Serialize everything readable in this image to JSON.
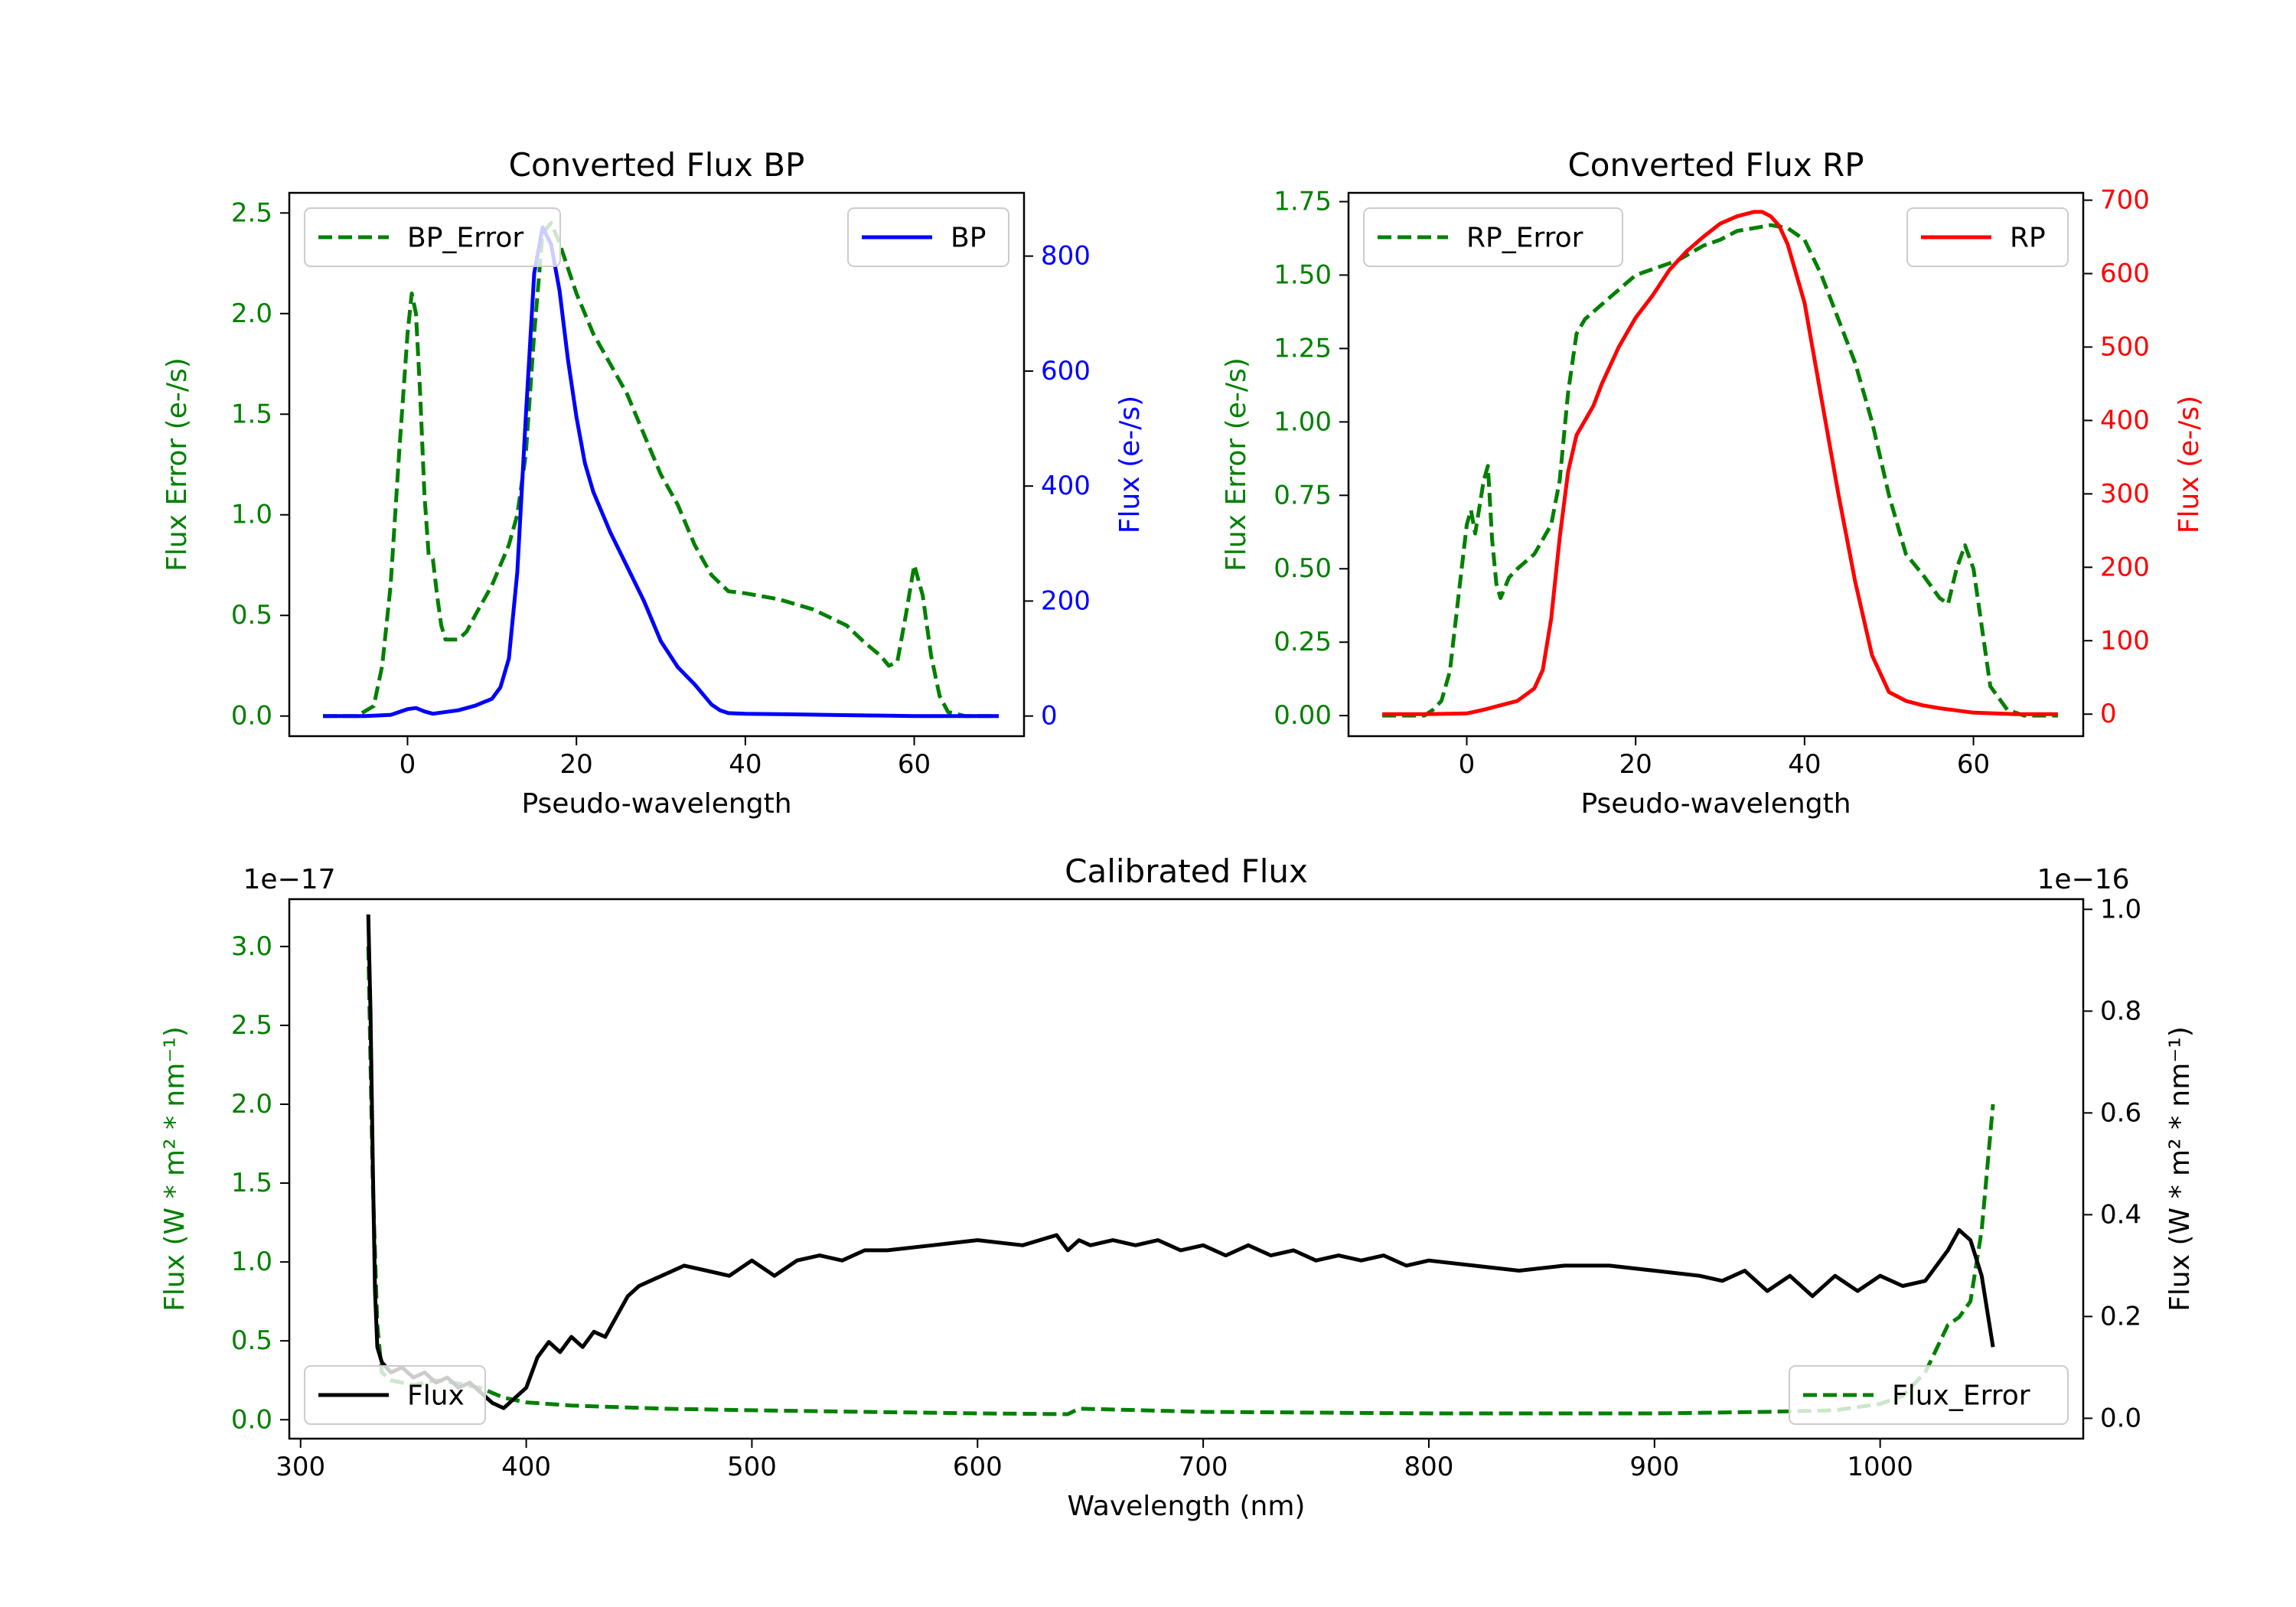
{
  "colors": {
    "error_green": "#008000",
    "bp_blue": "#0000ff",
    "rp_red": "#ff0000",
    "flux_black": "#000000",
    "axis": "#000000"
  },
  "chart_data": [
    {
      "id": "bp",
      "type": "line",
      "title": "Converted Flux BP",
      "xlabel": "Pseudo-wavelength",
      "ylabel_left": "Flux Error (e-/s)",
      "ylabel_right": "Flux (e-/s)",
      "xlim": [
        -14,
        73
      ],
      "ylim_left": [
        -0.1,
        2.6
      ],
      "ylim_right": [
        -35,
        910
      ],
      "xticks": [
        0,
        20,
        40,
        60
      ],
      "yticks_left": [
        "0.0",
        "0.5",
        "1.0",
        "1.5",
        "2.0",
        "2.5"
      ],
      "yticks_right": [
        "0",
        "200",
        "400",
        "600",
        "800"
      ],
      "legend_left": "BP_Error",
      "legend_right": "BP",
      "series": [
        {
          "name": "BP_Error",
          "axis": "left",
          "style": "dashed",
          "color": "#008000",
          "x": [
            -10,
            -6,
            -4,
            -3,
            -2,
            -1,
            0,
            0.5,
            1,
            1.5,
            2,
            2.5,
            3,
            3.5,
            4,
            4.5,
            5,
            6,
            7,
            8,
            10,
            12,
            13,
            14,
            15,
            16,
            17,
            18,
            20,
            22,
            24,
            26,
            28,
            30,
            32,
            34,
            36,
            38,
            40,
            44,
            48,
            52,
            54,
            56,
            57,
            58,
            59,
            60,
            61,
            62,
            63,
            64,
            66,
            70
          ],
          "y": [
            0,
            0,
            0.05,
            0.25,
            0.65,
            1.3,
            1.9,
            2.1,
            2.0,
            1.6,
            1.1,
            0.8,
            0.78,
            0.6,
            0.45,
            0.38,
            0.38,
            0.38,
            0.42,
            0.5,
            0.65,
            0.85,
            1.0,
            1.3,
            1.9,
            2.4,
            2.45,
            2.35,
            2.1,
            1.9,
            1.75,
            1.6,
            1.4,
            1.2,
            1.05,
            0.85,
            0.7,
            0.62,
            0.61,
            0.58,
            0.53,
            0.45,
            0.37,
            0.3,
            0.25,
            0.27,
            0.5,
            0.75,
            0.6,
            0.3,
            0.1,
            0.02,
            0,
            0
          ]
        },
        {
          "name": "BP",
          "axis": "right",
          "style": "solid",
          "color": "#0000ff",
          "x": [
            -10,
            -5,
            -2,
            0,
            1,
            2,
            3,
            4,
            6,
            8,
            10,
            11,
            12,
            13,
            14,
            15,
            16,
            17,
            18,
            19,
            20,
            21,
            22,
            24,
            26,
            28,
            30,
            32,
            34,
            36,
            37,
            38,
            40,
            45,
            50,
            55,
            60,
            65,
            70
          ],
          "y": [
            0,
            0,
            2,
            12,
            14,
            8,
            4,
            6,
            10,
            18,
            30,
            50,
            100,
            250,
            520,
            770,
            850,
            820,
            740,
            620,
            520,
            440,
            390,
            320,
            260,
            200,
            130,
            85,
            55,
            20,
            10,
            5,
            4,
            3,
            2,
            1,
            0,
            0,
            0
          ]
        }
      ]
    },
    {
      "id": "rp",
      "type": "line",
      "title": "Converted Flux RP",
      "xlabel": "Pseudo-wavelength",
      "ylabel_left": "Flux Error (e-/s)",
      "ylabel_right": "Flux (e-/s)",
      "xlim": [
        -14,
        73
      ],
      "ylim_left": [
        -0.07,
        1.78
      ],
      "ylim_right": [
        -30,
        710
      ],
      "xticks": [
        0,
        20,
        40,
        60
      ],
      "yticks_left": [
        "0.00",
        "0.25",
        "0.50",
        "0.75",
        "1.00",
        "1.25",
        "1.50",
        "1.75"
      ],
      "yticks_right": [
        "0",
        "100",
        "200",
        "300",
        "400",
        "500",
        "600",
        "700"
      ],
      "legend_left": "RP_Error",
      "legend_right": "RP",
      "series": [
        {
          "name": "RP_Error",
          "axis": "left",
          "style": "dashed",
          "color": "#008000",
          "x": [
            -10,
            -5,
            -4,
            -3,
            -2,
            -1,
            0,
            0.5,
            1,
            2,
            2.5,
            3,
            3.5,
            4,
            5,
            6,
            8,
            10,
            11,
            12,
            13,
            14,
            16,
            18,
            20,
            22,
            25,
            28,
            30,
            32,
            34,
            36,
            38,
            40,
            42,
            44,
            46,
            48,
            50,
            52,
            54,
            56,
            57,
            58,
            59,
            60,
            61,
            62,
            64,
            66,
            70
          ],
          "y": [
            0,
            0,
            0.02,
            0.05,
            0.15,
            0.4,
            0.65,
            0.7,
            0.62,
            0.8,
            0.85,
            0.6,
            0.45,
            0.4,
            0.47,
            0.5,
            0.55,
            0.65,
            0.8,
            1.1,
            1.3,
            1.35,
            1.4,
            1.45,
            1.5,
            1.52,
            1.55,
            1.6,
            1.62,
            1.65,
            1.66,
            1.67,
            1.66,
            1.62,
            1.5,
            1.35,
            1.2,
            1.0,
            0.75,
            0.55,
            0.48,
            0.4,
            0.38,
            0.5,
            0.58,
            0.5,
            0.3,
            0.1,
            0.02,
            0,
            0
          ]
        },
        {
          "name": "RP",
          "axis": "right",
          "style": "solid",
          "color": "#ff0000",
          "x": [
            -10,
            -5,
            0,
            2,
            4,
            6,
            8,
            9,
            10,
            11,
            12,
            13,
            14,
            15,
            16,
            18,
            20,
            22,
            24,
            26,
            28,
            30,
            32,
            34,
            35,
            36,
            37,
            38,
            40,
            42,
            44,
            46,
            48,
            50,
            52,
            54,
            56,
            60,
            65,
            70
          ],
          "y": [
            0,
            0,
            1,
            6,
            12,
            18,
            35,
            60,
            130,
            240,
            330,
            380,
            400,
            420,
            450,
            500,
            540,
            570,
            605,
            630,
            650,
            668,
            678,
            684,
            684,
            678,
            665,
            640,
            560,
            430,
            300,
            180,
            80,
            30,
            18,
            12,
            8,
            2,
            0,
            0
          ]
        }
      ]
    },
    {
      "id": "calibrated",
      "type": "line",
      "title": "Calibrated Flux",
      "xlabel": "Wavelength (nm)",
      "ylabel_left": "Flux (W * m² * nm⁻¹)",
      "ylabel_right": "Flux (W * m² * nm⁻¹)",
      "offset_left": "1e−17",
      "offset_right": "1e−16",
      "xlim": [
        295,
        1090
      ],
      "ylim_left": [
        -0.12,
        3.3
      ],
      "ylim_right": [
        -0.04,
        1.02
      ],
      "xticks": [
        300,
        400,
        500,
        600,
        700,
        800,
        900,
        1000
      ],
      "yticks_left": [
        "0.0",
        "0.5",
        "1.0",
        "1.5",
        "2.0",
        "2.5",
        "3.0"
      ],
      "yticks_right": [
        "0.0",
        "0.2",
        "0.4",
        "0.6",
        "0.8",
        "1.0"
      ],
      "legend_left": "Flux",
      "legend_right": "Flux_Error",
      "series": [
        {
          "name": "Flux_Error",
          "axis": "left",
          "style": "dashed",
          "color": "#008000",
          "x": [
            330,
            332,
            334,
            336,
            340,
            350,
            360,
            370,
            380,
            390,
            400,
            420,
            440,
            460,
            500,
            550,
            600,
            640,
            645,
            700,
            800,
            900,
            950,
            980,
            1000,
            1010,
            1020,
            1025,
            1030,
            1035,
            1040,
            1045,
            1050
          ],
          "y": [
            3.0,
            1.5,
            0.6,
            0.3,
            0.25,
            0.22,
            0.25,
            0.23,
            0.2,
            0.14,
            0.11,
            0.09,
            0.08,
            0.07,
            0.06,
            0.05,
            0.04,
            0.035,
            0.07,
            0.05,
            0.04,
            0.04,
            0.05,
            0.06,
            0.1,
            0.15,
            0.3,
            0.45,
            0.6,
            0.65,
            0.75,
            1.2,
            2.0
          ]
        },
        {
          "name": "Flux",
          "axis": "right",
          "style": "solid",
          "color": "#000000",
          "x": [
            330,
            331,
            332,
            333,
            334,
            336,
            340,
            345,
            350,
            355,
            360,
            365,
            370,
            375,
            380,
            385,
            390,
            395,
            400,
            405,
            410,
            415,
            420,
            425,
            430,
            435,
            440,
            445,
            450,
            455,
            460,
            470,
            480,
            490,
            500,
            510,
            520,
            530,
            540,
            550,
            560,
            580,
            600,
            620,
            635,
            640,
            645,
            650,
            660,
            670,
            680,
            690,
            700,
            710,
            720,
            730,
            740,
            750,
            760,
            770,
            780,
            790,
            800,
            820,
            840,
            860,
            880,
            900,
            920,
            930,
            940,
            950,
            960,
            970,
            980,
            990,
            1000,
            1010,
            1020,
            1030,
            1035,
            1040,
            1045,
            1050
          ],
          "y": [
            0.99,
            0.8,
            0.5,
            0.25,
            0.14,
            0.11,
            0.09,
            0.1,
            0.08,
            0.09,
            0.07,
            0.08,
            0.06,
            0.07,
            0.05,
            0.03,
            0.02,
            0.04,
            0.06,
            0.12,
            0.15,
            0.13,
            0.16,
            0.14,
            0.17,
            0.16,
            0.2,
            0.24,
            0.26,
            0.27,
            0.28,
            0.3,
            0.29,
            0.28,
            0.31,
            0.28,
            0.31,
            0.32,
            0.31,
            0.33,
            0.33,
            0.34,
            0.35,
            0.34,
            0.36,
            0.33,
            0.35,
            0.34,
            0.35,
            0.34,
            0.35,
            0.33,
            0.34,
            0.32,
            0.34,
            0.32,
            0.33,
            0.31,
            0.32,
            0.31,
            0.32,
            0.3,
            0.31,
            0.3,
            0.29,
            0.3,
            0.3,
            0.29,
            0.28,
            0.27,
            0.29,
            0.25,
            0.28,
            0.24,
            0.28,
            0.25,
            0.28,
            0.26,
            0.27,
            0.33,
            0.37,
            0.35,
            0.28,
            0.14
          ]
        }
      ]
    }
  ]
}
